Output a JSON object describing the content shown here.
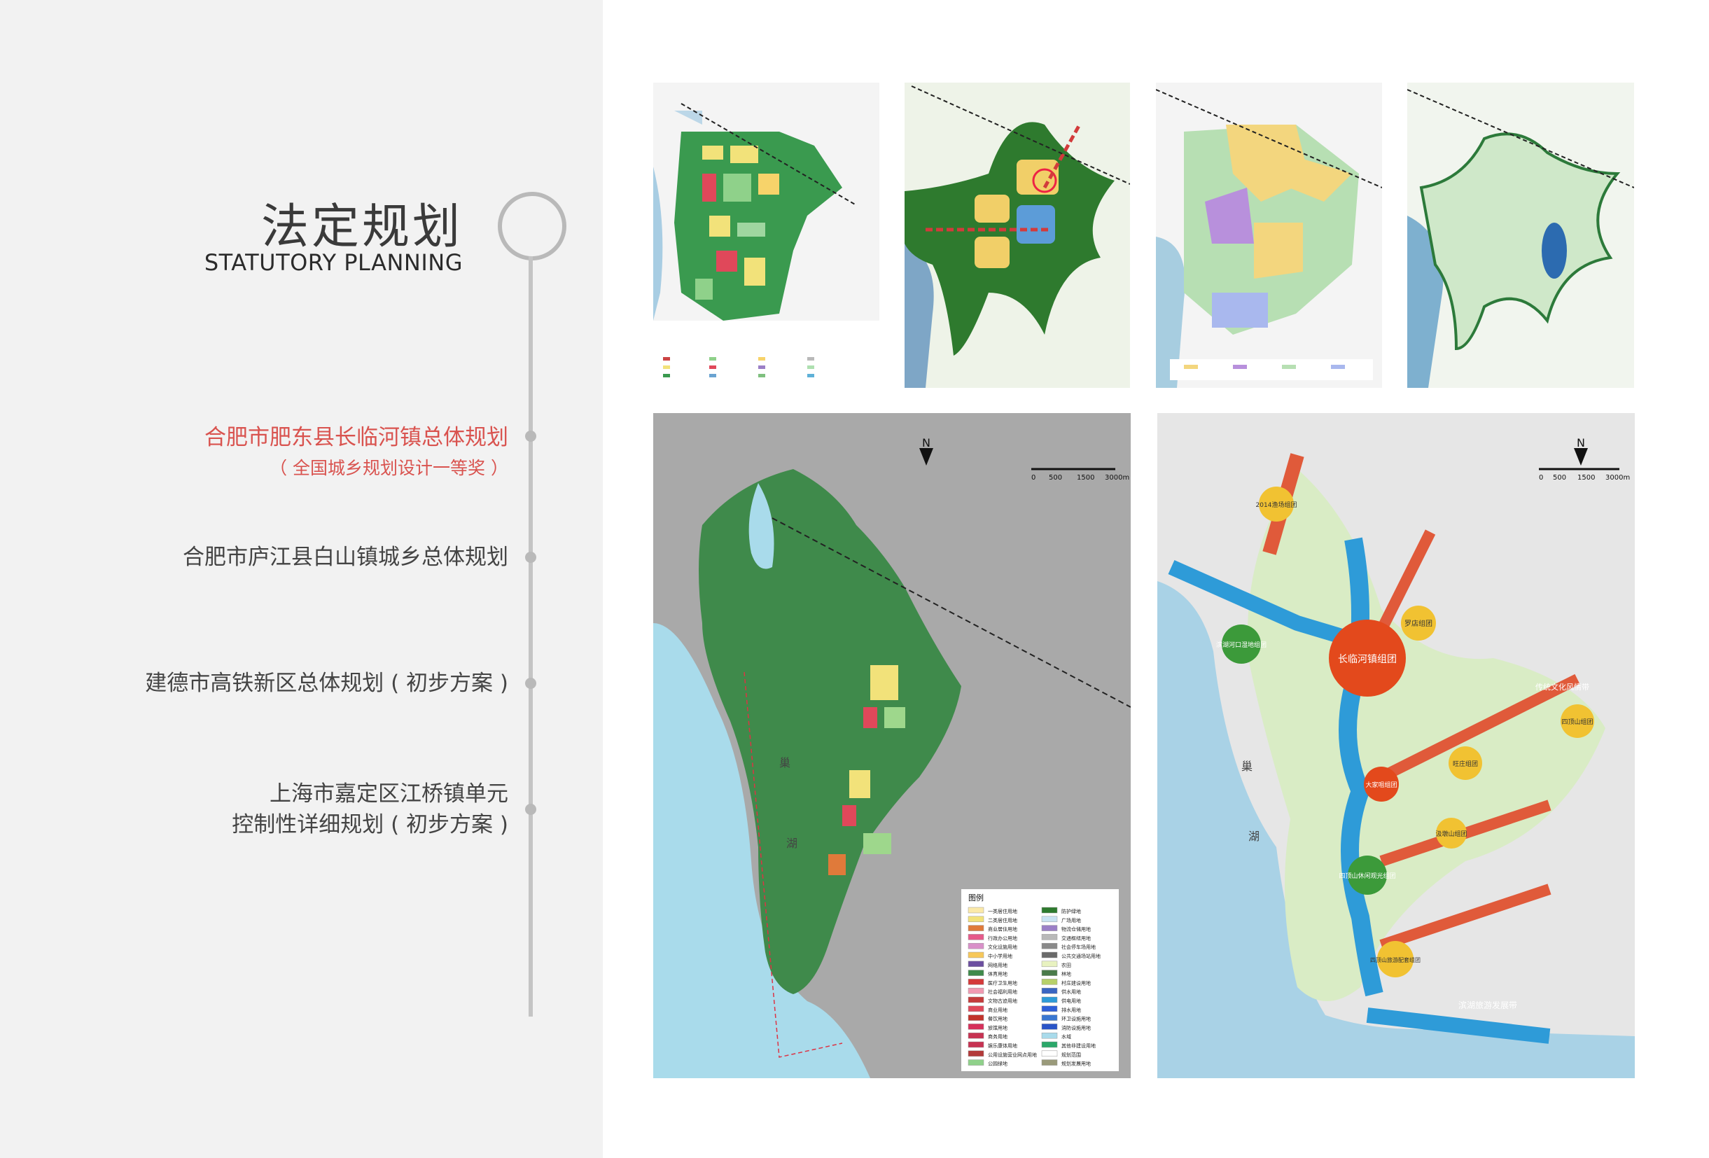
{
  "header": {
    "title_zh": "法定规划",
    "title_en": "STATUTORY PLANNING"
  },
  "projects": [
    {
      "name": "合肥市肥东县长临河镇总体规划",
      "note": "（ 全国城乡规划设计一等奖 ）",
      "active": true
    },
    {
      "name": "合肥市庐江县白山镇城乡总体规划",
      "active": false
    },
    {
      "name": "建德市高铁新区总体规划 ( 初步方案 )",
      "active": false
    },
    {
      "name_line1": "上海市嘉定区江桥镇单元",
      "name_line2": "控制性详细规划 ( 初步方案 )",
      "active": false
    }
  ],
  "maps": {
    "lake_label_1": "巢",
    "lake_label_2": "湖",
    "north_mark": "N",
    "scale_labels": [
      "0",
      "500",
      "1500",
      "3000m"
    ],
    "legend_title": "图例",
    "legend_left": [
      "一类居住用地",
      "二类居住用地",
      "商业居住用地",
      "行政办公用地",
      "文化设施用地",
      "中小学用地",
      "网络用地",
      "体育用地",
      "医疗卫生用地",
      "社会福利用地",
      "文物古迹用地",
      "商业用地",
      "餐饮用地",
      "旅馆用地",
      "商务用地",
      "娱乐康体用地",
      "公用设施营业网点用地",
      "公园绿地"
    ],
    "legend_right": [
      "防护绿地",
      "广场用地",
      "物流仓储用地",
      "交通枢纽用地",
      "社会停车场用地",
      "公共交通场站用地",
      "农田",
      "林地",
      "村庄建设用地",
      "供水用地",
      "供电用地",
      "排水用地",
      "环卫设施用地",
      "消防设施用地",
      "水域",
      "其他非建设用地",
      "规划范围",
      "规划发展用地"
    ],
    "clusters": [
      "长临河镇组团",
      "罗店组团",
      "2014渔场组团",
      "滨湖河口湿地组团",
      "四顶山组团",
      "旺庄组团",
      "大家咀组团",
      "汲墩山组团",
      "四顶山休闲观光组团",
      "四顶山旅游配套组团"
    ],
    "corridor_labels": [
      "滨湖旅游发展带",
      "传统文化风情带"
    ]
  }
}
